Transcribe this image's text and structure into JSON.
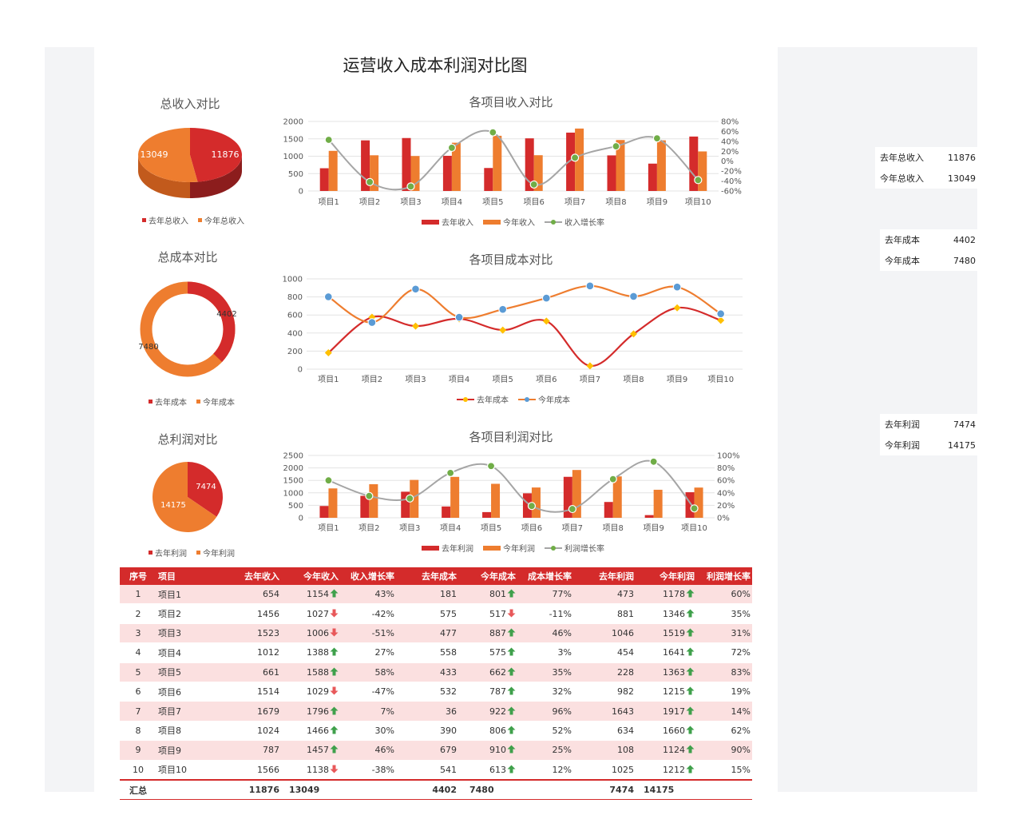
{
  "title": "运营收入成本利润对比图",
  "colors": {
    "red": "#d42b2b",
    "orange": "#ee7d2f",
    "gray": "#a5a5a5",
    "green": "#70ad47",
    "yellow": "#ffc000",
    "blue": "#5b9bd5"
  },
  "summary": {
    "revenue": {
      "title": "总收入对比",
      "last_label": "去年总收入",
      "this_label": "今年总收入",
      "last": 11876,
      "this": 13049
    },
    "cost": {
      "title": "总成本对比",
      "last_label": "去年成本",
      "this_label": "今年成本",
      "last": 4402,
      "this": 7480
    },
    "profit": {
      "title": "总利润对比",
      "last_label": "去年利润",
      "this_label": "今年利润",
      "last": 7474,
      "this": 14175
    }
  },
  "side_panel": [
    {
      "rows": [
        {
          "label": "去年总收入",
          "value": "11876"
        },
        {
          "label": "今年总收入",
          "value": "13049"
        }
      ]
    },
    {
      "rows": [
        {
          "label": "去年成本",
          "value": "4402"
        },
        {
          "label": "今年成本",
          "value": "7480"
        }
      ]
    },
    {
      "rows": [
        {
          "label": "去年利润",
          "value": "7474"
        },
        {
          "label": "今年利润",
          "value": "14175"
        }
      ]
    }
  ],
  "chart_data": [
    {
      "type": "pie",
      "title": "总收入对比",
      "labels": [
        "去年总收入",
        "今年总收入"
      ],
      "values": [
        11876,
        13049
      ],
      "style": "3d"
    },
    {
      "type": "bar",
      "title": "各项目收入对比",
      "categories": [
        "项目1",
        "项目2",
        "项目3",
        "项目4",
        "项目5",
        "项目6",
        "项目7",
        "项目8",
        "项目9",
        "项目10"
      ],
      "series": [
        {
          "name": "去年收入",
          "values": [
            654,
            1456,
            1523,
            1012,
            661,
            1514,
            1679,
            1024,
            787,
            1566
          ]
        },
        {
          "name": "今年收入",
          "values": [
            1154,
            1027,
            1006,
            1388,
            1588,
            1029,
            1796,
            1466,
            1457,
            1138
          ]
        },
        {
          "name": "收入增长率",
          "axis": "secondary",
          "type": "line",
          "values": [
            43,
            -42,
            -51,
            27,
            58,
            -47,
            7,
            30,
            46,
            -38
          ]
        }
      ],
      "ylim": [
        0,
        2000
      ],
      "yticks": [
        "0",
        "500",
        "1000",
        "1500",
        "2000"
      ],
      "y2lim": [
        -60,
        80
      ],
      "y2ticks": [
        "-60%",
        "-40%",
        "-20%",
        "0%",
        "20%",
        "40%",
        "60%",
        "80%"
      ],
      "legend": "bottom"
    },
    {
      "type": "pie",
      "title": "总成本对比",
      "labels": [
        "去年成本",
        "今年成本"
      ],
      "values": [
        4402,
        7480
      ],
      "style": "doughnut"
    },
    {
      "type": "line",
      "title": "各项目成本对比",
      "categories": [
        "项目1",
        "项目2",
        "项目3",
        "项目4",
        "项目5",
        "项目6",
        "项目7",
        "项目8",
        "项目9",
        "项目10"
      ],
      "series": [
        {
          "name": "去年成本",
          "values": [
            181,
            575,
            477,
            558,
            433,
            532,
            36,
            390,
            679,
            541
          ]
        },
        {
          "name": "今年成本",
          "values": [
            801,
            517,
            887,
            575,
            662,
            787,
            922,
            806,
            910,
            613
          ]
        }
      ],
      "ylim": [
        0,
        1000
      ],
      "yticks": [
        "0",
        "200",
        "400",
        "600",
        "800",
        "1000"
      ],
      "legend": "bottom"
    },
    {
      "type": "pie",
      "title": "总利润对比",
      "labels": [
        "去年利润",
        "今年利润"
      ],
      "values": [
        7474,
        14175
      ]
    },
    {
      "type": "bar",
      "title": "各项目利润对比",
      "categories": [
        "项目1",
        "项目2",
        "项目3",
        "项目4",
        "项目5",
        "项目6",
        "项目7",
        "项目8",
        "项目9",
        "项目10"
      ],
      "series": [
        {
          "name": "去年利润",
          "values": [
            473,
            881,
            1046,
            454,
            228,
            982,
            1643,
            634,
            108,
            1025
          ]
        },
        {
          "name": "今年利润",
          "values": [
            1178,
            1346,
            1519,
            1641,
            1363,
            1215,
            1917,
            1660,
            1124,
            1212
          ]
        },
        {
          "name": "利润增长率",
          "axis": "secondary",
          "type": "line",
          "values": [
            60,
            35,
            31,
            72,
            83,
            19,
            14,
            62,
            90,
            15
          ]
        }
      ],
      "ylim": [
        0,
        2500
      ],
      "yticks": [
        "0",
        "500",
        "1000",
        "1500",
        "2000",
        "2500"
      ],
      "y2lim": [
        0,
        100
      ],
      "y2ticks": [
        "0%",
        "20%",
        "40%",
        "60%",
        "80%",
        "100%"
      ],
      "legend": "bottom"
    }
  ],
  "table": {
    "headers": [
      "序号",
      "项目",
      "去年收入",
      "今年收入",
      "收入增长率",
      "去年成本",
      "今年成本",
      "成本增长率",
      "去年利润",
      "今年利润",
      "利润增长率"
    ],
    "rows": [
      {
        "no": "1",
        "name": "项目1",
        "rev_last": "654",
        "rev_this": "1154",
        "rev_dir": "up",
        "rev_rate": "43%",
        "cost_last": "181",
        "cost_this": "801",
        "cost_dir": "up",
        "cost_rate": "77%",
        "prof_last": "473",
        "prof_this": "1178",
        "prof_dir": "up",
        "prof_rate": "60%"
      },
      {
        "no": "2",
        "name": "项目2",
        "rev_last": "1456",
        "rev_this": "1027",
        "rev_dir": "down",
        "rev_rate": "-42%",
        "cost_last": "575",
        "cost_this": "517",
        "cost_dir": "down",
        "cost_rate": "-11%",
        "prof_last": "881",
        "prof_this": "1346",
        "prof_dir": "up",
        "prof_rate": "35%"
      },
      {
        "no": "3",
        "name": "项目3",
        "rev_last": "1523",
        "rev_this": "1006",
        "rev_dir": "down",
        "rev_rate": "-51%",
        "cost_last": "477",
        "cost_this": "887",
        "cost_dir": "up",
        "cost_rate": "46%",
        "prof_last": "1046",
        "prof_this": "1519",
        "prof_dir": "up",
        "prof_rate": "31%"
      },
      {
        "no": "4",
        "name": "项目4",
        "rev_last": "1012",
        "rev_this": "1388",
        "rev_dir": "up",
        "rev_rate": "27%",
        "cost_last": "558",
        "cost_this": "575",
        "cost_dir": "up",
        "cost_rate": "3%",
        "prof_last": "454",
        "prof_this": "1641",
        "prof_dir": "up",
        "prof_rate": "72%"
      },
      {
        "no": "5",
        "name": "项目5",
        "rev_last": "661",
        "rev_this": "1588",
        "rev_dir": "up",
        "rev_rate": "58%",
        "cost_last": "433",
        "cost_this": "662",
        "cost_dir": "up",
        "cost_rate": "35%",
        "prof_last": "228",
        "prof_this": "1363",
        "prof_dir": "up",
        "prof_rate": "83%"
      },
      {
        "no": "6",
        "name": "项目6",
        "rev_last": "1514",
        "rev_this": "1029",
        "rev_dir": "down",
        "rev_rate": "-47%",
        "cost_last": "532",
        "cost_this": "787",
        "cost_dir": "up",
        "cost_rate": "32%",
        "prof_last": "982",
        "prof_this": "1215",
        "prof_dir": "up",
        "prof_rate": "19%"
      },
      {
        "no": "7",
        "name": "项目7",
        "rev_last": "1679",
        "rev_this": "1796",
        "rev_dir": "up",
        "rev_rate": "7%",
        "cost_last": "36",
        "cost_this": "922",
        "cost_dir": "up",
        "cost_rate": "96%",
        "prof_last": "1643",
        "prof_this": "1917",
        "prof_dir": "up",
        "prof_rate": "14%"
      },
      {
        "no": "8",
        "name": "项目8",
        "rev_last": "1024",
        "rev_this": "1466",
        "rev_dir": "up",
        "rev_rate": "30%",
        "cost_last": "390",
        "cost_this": "806",
        "cost_dir": "up",
        "cost_rate": "52%",
        "prof_last": "634",
        "prof_this": "1660",
        "prof_dir": "up",
        "prof_rate": "62%"
      },
      {
        "no": "9",
        "name": "项目9",
        "rev_last": "787",
        "rev_this": "1457",
        "rev_dir": "up",
        "rev_rate": "46%",
        "cost_last": "679",
        "cost_this": "910",
        "cost_dir": "up",
        "cost_rate": "25%",
        "prof_last": "108",
        "prof_this": "1124",
        "prof_dir": "up",
        "prof_rate": "90%"
      },
      {
        "no": "10",
        "name": "项目10",
        "rev_last": "1566",
        "rev_this": "1138",
        "rev_dir": "down",
        "rev_rate": "-38%",
        "cost_last": "541",
        "cost_this": "613",
        "cost_dir": "up",
        "cost_rate": "12%",
        "prof_last": "1025",
        "prof_this": "1212",
        "prof_dir": "up",
        "prof_rate": "15%"
      }
    ],
    "total": {
      "label": "汇总",
      "rev_last": "11876",
      "rev_this": "13049",
      "cost_last": "4402",
      "cost_this": "7480",
      "prof_last": "7474",
      "prof_this": "14175"
    }
  }
}
